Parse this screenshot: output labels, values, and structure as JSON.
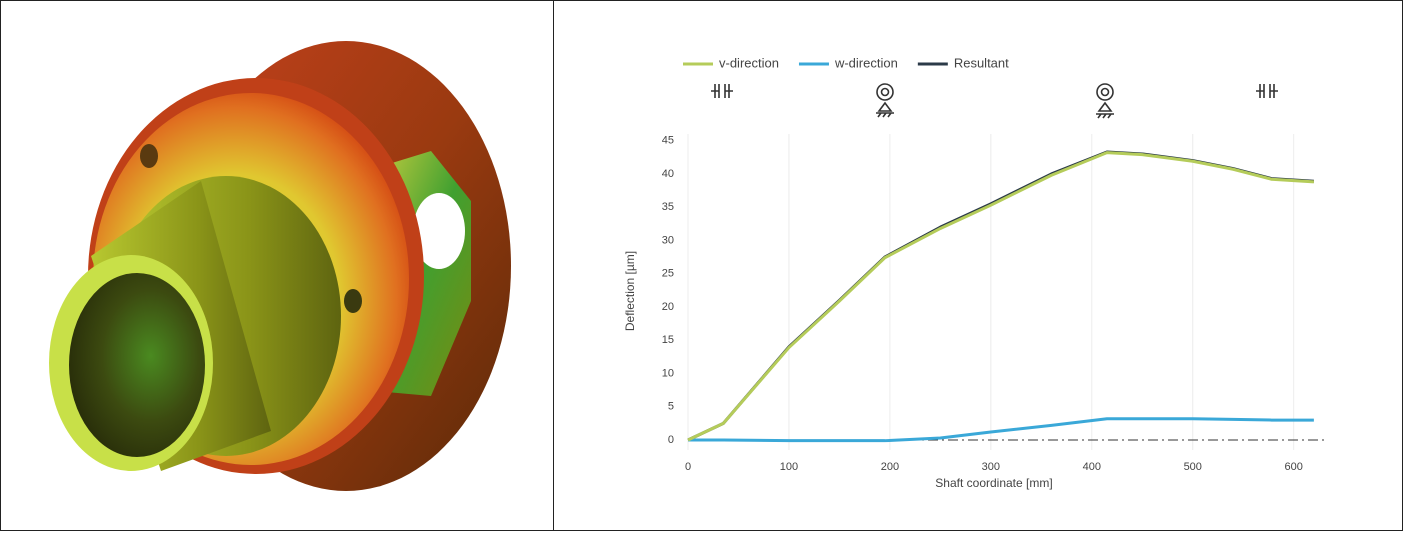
{
  "chart_data": {
    "type": "line",
    "xlabel": "Shaft coordinate [mm]",
    "ylabel": "Deflection [µm]",
    "x": [
      0,
      35,
      100,
      150,
      195,
      250,
      300,
      360,
      415,
      450,
      500,
      540,
      578,
      620
    ],
    "series": [
      {
        "name": "v-direction",
        "color": "#b5cc5a",
        "values": [
          0,
          2.5,
          13.9,
          20.9,
          27.4,
          31.8,
          35.3,
          39.8,
          43.2,
          42.9,
          41.9,
          40.7,
          39.2,
          38.8
        ]
      },
      {
        "name": "w-direction",
        "color": "#3aa8d8",
        "values": [
          0,
          0,
          -0.1,
          -0.1,
          -0.1,
          0.3,
          1.2,
          2.2,
          3.2,
          3.2,
          3.2,
          3.1,
          3.0,
          3.0
        ]
      },
      {
        "name": "Resultant",
        "color": "#2b3a48",
        "values": [
          0,
          2.5,
          14,
          21,
          27.5,
          32,
          35.5,
          40,
          43.3,
          43,
          42,
          40.8,
          39.3,
          38.9
        ]
      }
    ],
    "xlim": [
      0,
      632
    ],
    "ylim": [
      -1.5,
      46
    ],
    "xticks": [
      0,
      100,
      200,
      300,
      400,
      500,
      600
    ],
    "yticks": [
      0,
      5,
      10,
      15,
      20,
      25,
      30,
      35,
      40,
      45
    ],
    "grid": true,
    "zero_line": true,
    "legend": "top"
  }
}
